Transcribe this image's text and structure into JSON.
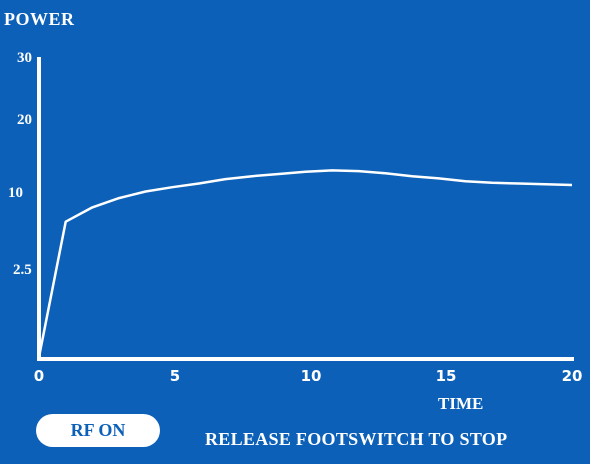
{
  "header": {
    "y_axis_title": "POWER",
    "x_axis_title": "TIME"
  },
  "controls": {
    "rf_button_label": "RF ON",
    "status_message": "RELEASE FOOTSWITCH TO STOP"
  },
  "colors": {
    "background": "#0c60b8",
    "foreground": "#ffffff"
  },
  "chart_data": {
    "type": "line",
    "xlabel": "TIME",
    "ylabel": "POWER",
    "xlim": [
      0,
      20
    ],
    "x_ticks": [
      "0",
      "5",
      "10",
      "15",
      "20"
    ],
    "y_ticks": [
      "2.5",
      "10",
      "20",
      "30"
    ],
    "series": [
      {
        "x": [
          0,
          1,
          2,
          3,
          4,
          5,
          6,
          7,
          8,
          9,
          10,
          11,
          12,
          13,
          14,
          15,
          16,
          17,
          18,
          19,
          20
        ],
        "y": [
          0,
          7.2,
          8.6,
          9.5,
          10.2,
          10.8,
          11.3,
          11.9,
          12.3,
          12.6,
          12.9,
          13.1,
          13.0,
          12.7,
          12.3,
          12.0,
          11.6,
          11.4,
          11.3,
          11.2,
          11.1
        ]
      }
    ]
  }
}
